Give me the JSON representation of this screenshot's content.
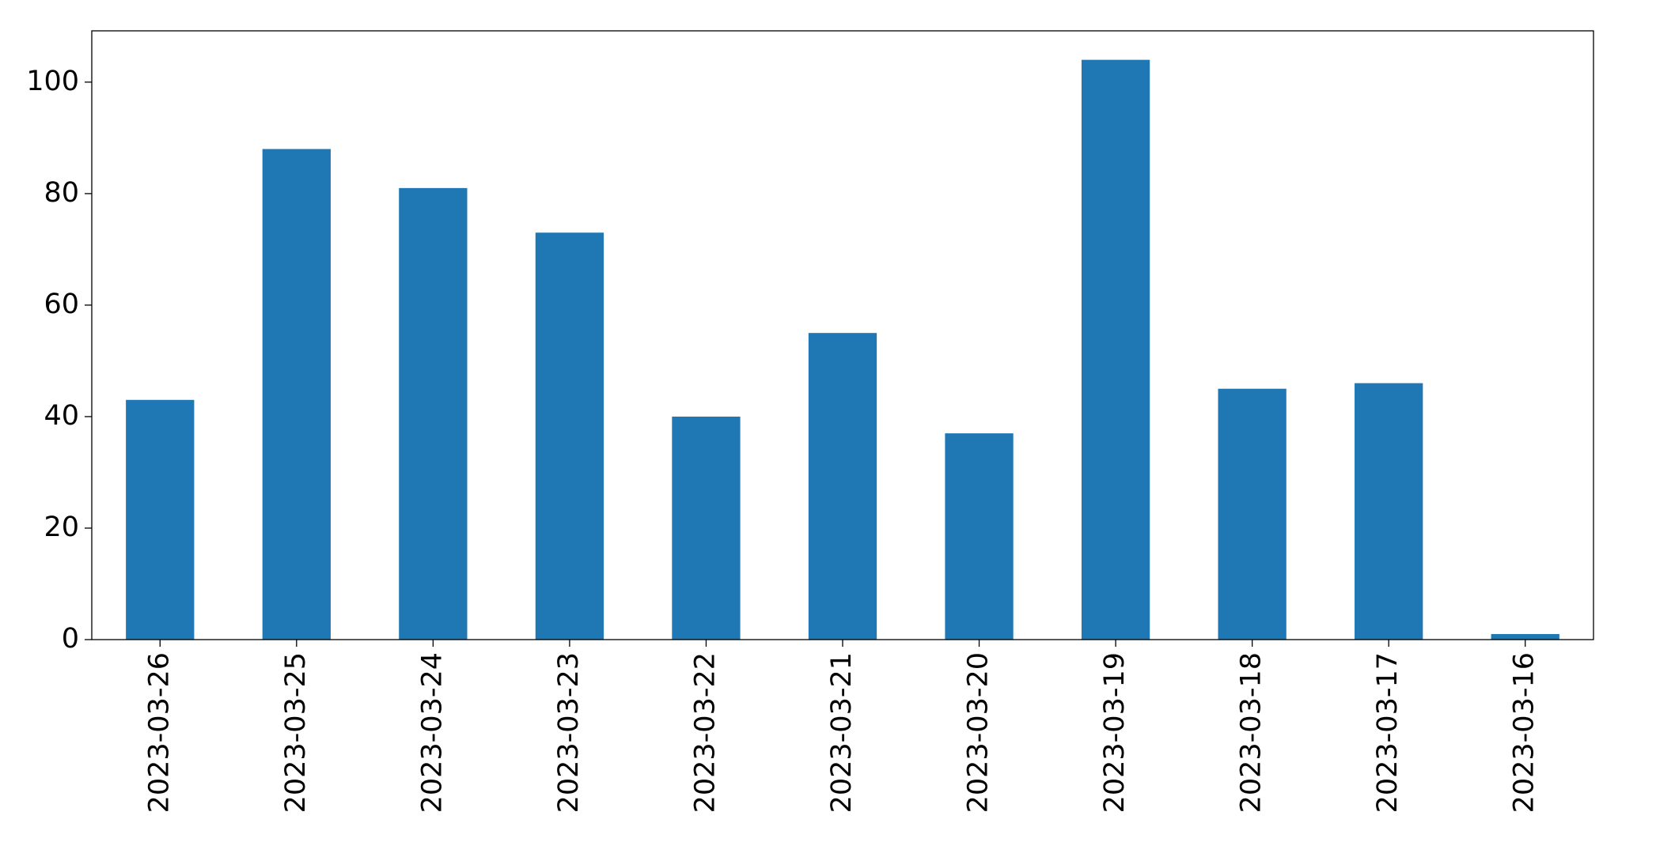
{
  "chart_data": {
    "type": "bar",
    "categories": [
      "2023-03-26",
      "2023-03-25",
      "2023-03-24",
      "2023-03-23",
      "2023-03-22",
      "2023-03-21",
      "2023-03-20",
      "2023-03-19",
      "2023-03-18",
      "2023-03-17",
      "2023-03-16"
    ],
    "values": [
      43,
      88,
      81,
      73,
      40,
      55,
      37,
      104,
      45,
      46,
      1
    ],
    "color": "#1f77b4",
    "ylim": [
      0,
      109.2
    ],
    "yticks": [
      0,
      20,
      40,
      60,
      80,
      100
    ],
    "grid": false
  }
}
